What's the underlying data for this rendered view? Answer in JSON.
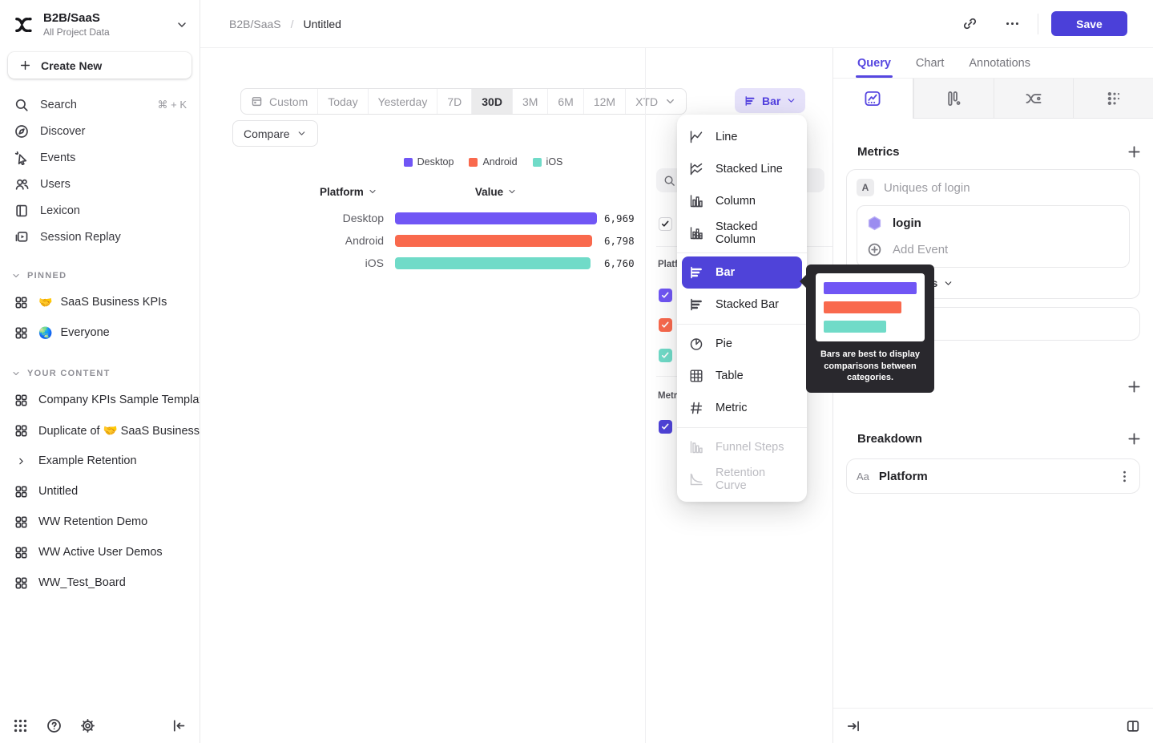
{
  "colors": {
    "accent": "#5646e0",
    "selected": "#4f43d9",
    "save": "#4b40d9",
    "purple": "#7056f5",
    "orange": "#f9694d",
    "teal": "#70dbc8"
  },
  "project": {
    "name": "B2B/SaaS",
    "subtitle": "All Project Data"
  },
  "sidebar": {
    "create_new": "Create New",
    "nav": [
      {
        "id": "search",
        "label": "Search",
        "icon": "search",
        "shortcut": "⌘ + K"
      },
      {
        "id": "discover",
        "label": "Discover",
        "icon": "discover"
      },
      {
        "id": "events",
        "label": "Events",
        "icon": "events"
      },
      {
        "id": "users",
        "label": "Users",
        "icon": "users"
      },
      {
        "id": "lexicon",
        "label": "Lexicon",
        "icon": "lexicon"
      },
      {
        "id": "session-replay",
        "label": "Session Replay",
        "icon": "replay"
      }
    ],
    "pinned_header": "PINNED",
    "pinned": [
      {
        "emoji": "🤝",
        "label": "SaaS Business KPIs"
      },
      {
        "emoji": "🌏",
        "label": "Everyone"
      }
    ],
    "your_content_header": "YOUR CONTENT",
    "content": [
      {
        "label": "Company KPIs Sample Templat",
        "icon": "board"
      },
      {
        "label": "Duplicate of 🤝 SaaS Business",
        "icon": "board"
      },
      {
        "label": "Example Retention",
        "icon": "chevron-right"
      },
      {
        "label": "Untitled",
        "icon": "board"
      },
      {
        "label": "WW Retention Demo",
        "icon": "board"
      },
      {
        "label": "WW Active User Demos",
        "icon": "board"
      },
      {
        "label": "WW_Test_Board",
        "icon": "board"
      }
    ]
  },
  "header": {
    "breadcrumb_project": "B2B/SaaS",
    "breadcrumb_sep": "/",
    "breadcrumb_page": "Untitled",
    "save_label": "Save"
  },
  "toolbar": {
    "ranges": [
      "Custom",
      "Today",
      "Yesterday",
      "7D",
      "30D",
      "3M",
      "6M",
      "12M",
      "XTD"
    ],
    "active_range": "30D",
    "compare_label": "Compare",
    "chart_type_label": "Bar"
  },
  "chart_data": {
    "type": "bar",
    "orientation": "horizontal",
    "title": "",
    "categories": [
      "Desktop",
      "Android",
      "iOS"
    ],
    "values": [
      6969,
      6798,
      6760
    ],
    "display_values": [
      "6,969",
      "6,798",
      "6,760"
    ],
    "series_colors": [
      "#7056f5",
      "#f9694d",
      "#70dbc8"
    ],
    "legend": [
      "Desktop",
      "Android",
      "iOS"
    ],
    "legend_position": "top",
    "column_headers": {
      "platform": "Platform",
      "value": "Value"
    },
    "xlim": [
      0,
      6969
    ],
    "grid": false
  },
  "series_panel": {
    "section1_label": "Platform",
    "section2_label": "Metrics",
    "master_checked": true,
    "series_checked": [
      true,
      true,
      true
    ],
    "metric_checkbox_color": "#4f43d9"
  },
  "chart_menu": {
    "items": [
      {
        "label": "Line",
        "icon": "m-line",
        "state": "normal",
        "divider_after": false
      },
      {
        "label": "Stacked Line",
        "icon": "m-stacked-line",
        "state": "normal",
        "divider_after": false
      },
      {
        "label": "Column",
        "icon": "m-column",
        "state": "normal",
        "divider_after": false
      },
      {
        "label": "Stacked Column",
        "icon": "m-stacked-column",
        "state": "normal",
        "divider_after": true
      },
      {
        "label": "Bar",
        "icon": "m-bar",
        "state": "selected",
        "divider_after": false
      },
      {
        "label": "Stacked Bar",
        "icon": "m-stacked-bar",
        "state": "normal",
        "divider_after": true
      },
      {
        "label": "Pie",
        "icon": "m-pie",
        "state": "normal",
        "divider_after": false
      },
      {
        "label": "Table",
        "icon": "m-table",
        "state": "normal",
        "divider_after": false
      },
      {
        "label": "Metric",
        "icon": "m-metric",
        "state": "normal",
        "divider_after": true
      },
      {
        "label": "Funnel Steps",
        "icon": "m-funnel",
        "state": "disabled",
        "divider_after": false
      },
      {
        "label": "Retention Curve",
        "icon": "m-retention",
        "state": "disabled",
        "divider_after": false
      }
    ]
  },
  "tooltip": {
    "text": "Bars are best to display comparisons between categories.",
    "mini_bar_widths_pct": [
      100,
      84,
      67
    ]
  },
  "query_panel": {
    "tabs": [
      "Query",
      "Chart",
      "Annotations"
    ],
    "active_tab": "Query",
    "metrics_header": "Metrics",
    "metric_letter": "A",
    "metric_placeholder": "Uniques of login",
    "event_name": "login",
    "add_event_label": "Add Event",
    "aggregation_label": "Uniques",
    "breakdown_header": "Breakdown",
    "breakdown_property_type": "Aa",
    "breakdown_property": "Platform"
  }
}
